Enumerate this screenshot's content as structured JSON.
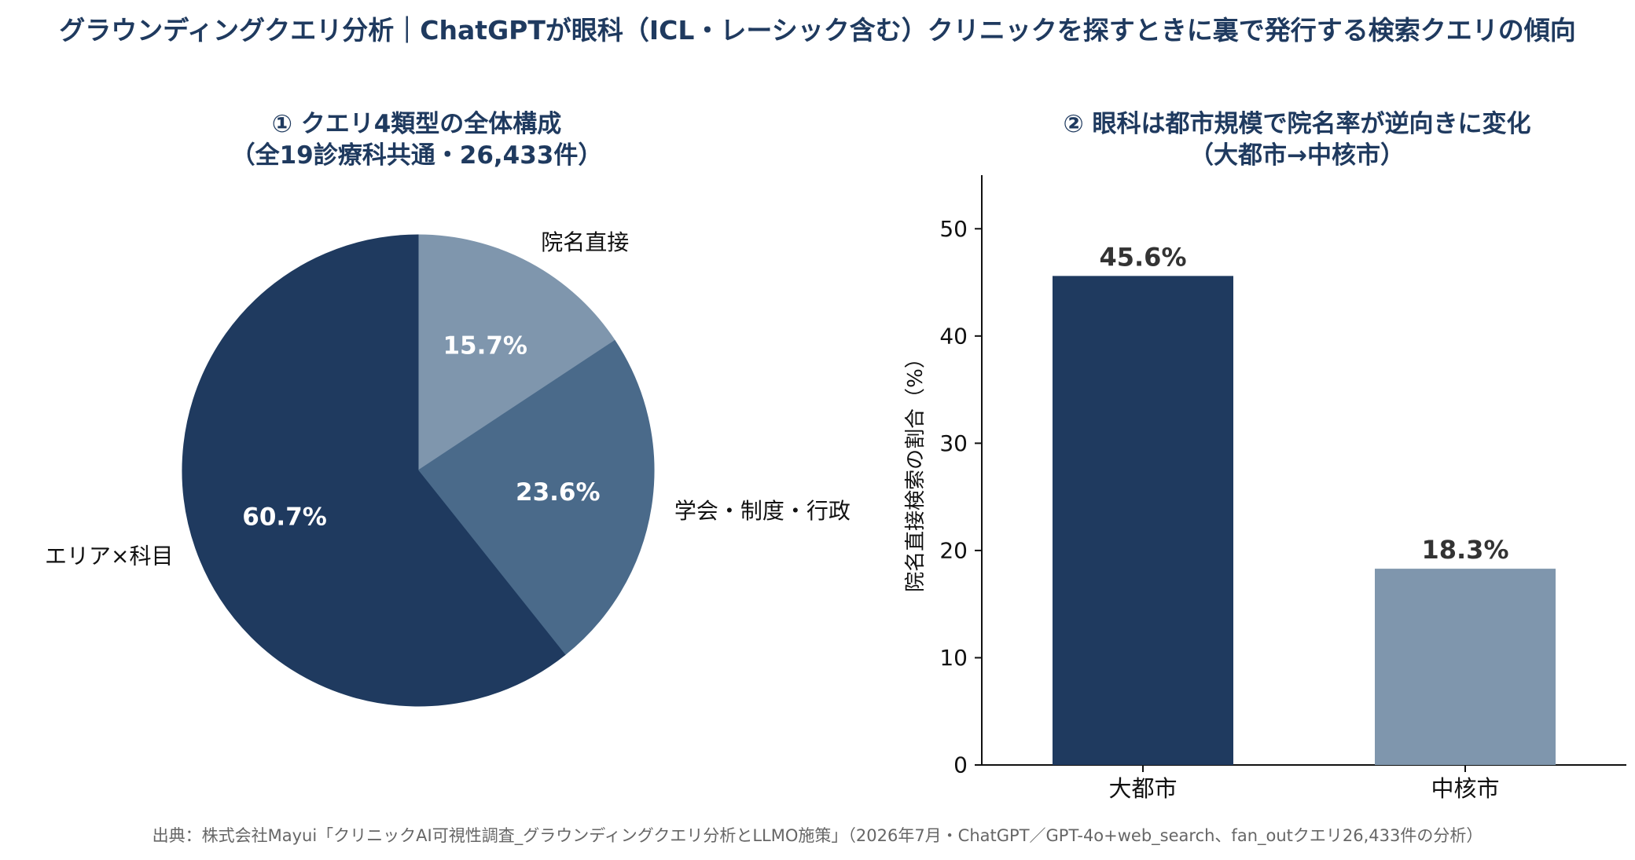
{
  "title": "グラウンディングクエリ分析｜ChatGPTが眼科（ICL・レーシック含む）クリニックを探すときに裏で発行する検索クエリの傾向",
  "source": "出典：株式会社Mayui「クリニックAI可視性調査_グラウンディングクエリ分析とLLMO施策」（2026年7月・ChatGPT／GPT-4o+web_search、fan_outクエリ26,433件の分析）",
  "colors": {
    "dark": "#1f3a5f",
    "mid": "#4a6a8a",
    "light": "#7f96ad",
    "title": "#1f3a5f"
  },
  "chart_data": [
    {
      "type": "pie",
      "title_line1": "① クエリ4類型の全体構成",
      "title_line2": "（全19診療科共通・26,433件）",
      "start_angle_deg": 90,
      "direction": "clockwise",
      "slices": [
        {
          "name": "院名直接",
          "value": 15.7,
          "label": "15.7%",
          "color": "#7f96ad"
        },
        {
          "name": "学会・制度・行政",
          "value": 23.6,
          "label": "23.6%",
          "color": "#4a6a8a"
        },
        {
          "name": "エリア×科目",
          "value": 60.7,
          "label": "60.7%",
          "color": "#1f3a5f"
        }
      ]
    },
    {
      "type": "bar",
      "title_line1": "② 眼科は都市規模で院名率が逆向きに変化",
      "title_line2": "（大都市→中核市）",
      "ylabel": "院名直接検索の割合（%）",
      "ylim": [
        0,
        55
      ],
      "yticks": [
        0,
        10,
        20,
        30,
        40,
        50
      ],
      "categories": [
        "大都市",
        "中核市"
      ],
      "values": [
        45.6,
        18.3
      ],
      "value_labels": [
        "45.6%",
        "18.3%"
      ],
      "bar_colors": [
        "#1f3a5f",
        "#7f96ad"
      ],
      "grid": false
    }
  ]
}
